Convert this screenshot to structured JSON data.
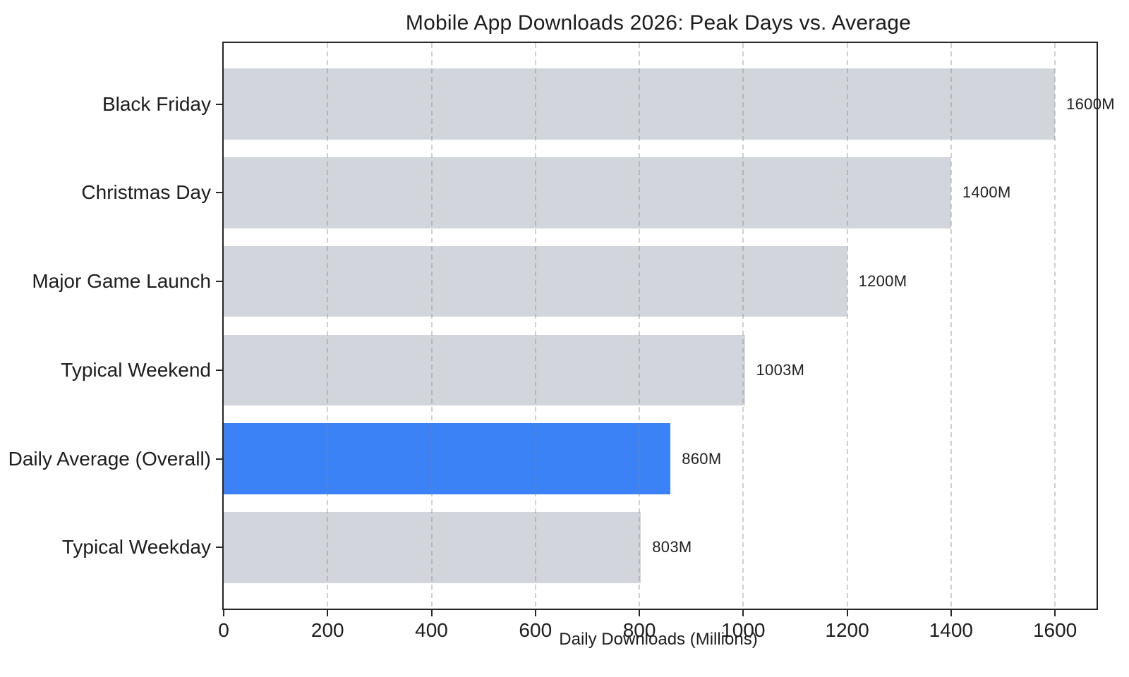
{
  "chart_data": {
    "type": "bar",
    "orientation": "horizontal",
    "title": "Mobile App Downloads 2026: Peak Days vs. Average",
    "xlabel": "Daily Downloads (Millions)",
    "ylabel": "",
    "categories": [
      "Black Friday",
      "Christmas Day",
      "Major Game Launch",
      "Typical Weekend",
      "Daily Average (Overall)",
      "Typical Weekday"
    ],
    "values": [
      1600,
      1400,
      1200,
      1003,
      860,
      803
    ],
    "value_labels": [
      "1600M",
      "1400M",
      "1200M",
      "1003M",
      "860M",
      "803M"
    ],
    "highlight_index": 4,
    "colors": {
      "bar_default": "#d2d5db",
      "bar_highlight": "#3b82f6",
      "spine": "#262626",
      "text": "#1d1d1f"
    },
    "x_ticks": [
      0,
      200,
      400,
      600,
      800,
      1000,
      1200,
      1400,
      1600
    ],
    "xlim": [
      0,
      1680
    ],
    "grid": "dashed-vertical-over-bars",
    "legend": "none"
  }
}
